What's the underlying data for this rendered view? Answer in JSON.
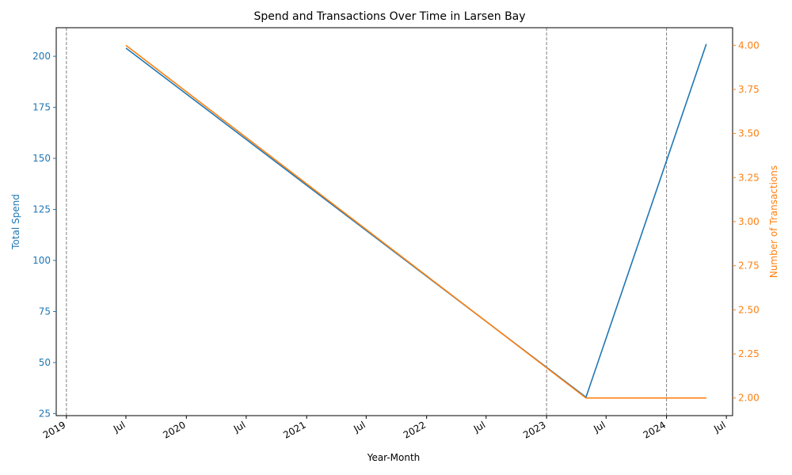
{
  "chart_data": {
    "type": "line",
    "title": "Spend and Transactions Over Time in Larsen Bay",
    "xlabel": "Year-Month",
    "ylabel_left": "Total Spend",
    "ylabel_right": "Number of Transactions",
    "x_range": [
      "2018-12-01",
      "2024-07-20"
    ],
    "x_ticks": [
      {
        "date": "2019-01-01",
        "label": "2019"
      },
      {
        "date": "2019-07-01",
        "label": "Jul"
      },
      {
        "date": "2020-01-01",
        "label": "2020"
      },
      {
        "date": "2020-07-01",
        "label": "Jul"
      },
      {
        "date": "2021-01-01",
        "label": "2021"
      },
      {
        "date": "2021-07-01",
        "label": "Jul"
      },
      {
        "date": "2022-01-01",
        "label": "2022"
      },
      {
        "date": "2022-07-01",
        "label": "Jul"
      },
      {
        "date": "2023-01-01",
        "label": "2023"
      },
      {
        "date": "2023-07-01",
        "label": "Jul"
      },
      {
        "date": "2024-01-01",
        "label": "2024"
      },
      {
        "date": "2024-07-01",
        "label": "Jul"
      }
    ],
    "vlines": [
      "2019-01-01",
      "2023-01-01",
      "2024-01-01"
    ],
    "ylim_left": [
      24,
      214
    ],
    "yticks_left": [
      25,
      50,
      75,
      100,
      125,
      150,
      175,
      200
    ],
    "ylim_right": [
      1.9,
      4.1
    ],
    "yticks_right": [
      "2.00",
      "2.25",
      "2.50",
      "2.75",
      "3.00",
      "3.25",
      "3.50",
      "3.75",
      "4.00"
    ],
    "series": [
      {
        "name": "Total Spend",
        "axis": "left",
        "color": "#1f77b4",
        "points": [
          {
            "x": "2019-07-01",
            "y": 204
          },
          {
            "x": "2023-05-01",
            "y": 33
          },
          {
            "x": "2024-05-01",
            "y": 206
          }
        ]
      },
      {
        "name": "Number of Transactions",
        "axis": "right",
        "color": "#ff7f0e",
        "points": [
          {
            "x": "2019-07-01",
            "y": 4.0
          },
          {
            "x": "2023-05-01",
            "y": 2.0
          },
          {
            "x": "2024-05-01",
            "y": 2.0
          }
        ]
      }
    ],
    "grid": false,
    "legend": false
  }
}
